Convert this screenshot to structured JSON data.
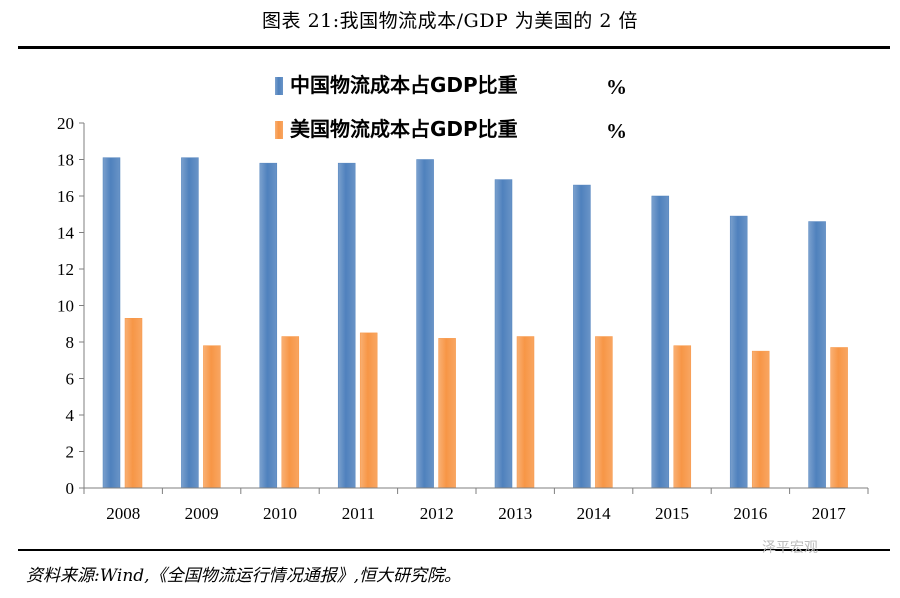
{
  "figure": {
    "title": "图表 21:我国物流成本/GDP 为美国的 2 倍",
    "source": "资料来源:Wind,《全国物流运行情况通报》,恒大研究院。",
    "watermark": "泽平宏观"
  },
  "chart_data": {
    "type": "bar",
    "categories": [
      "2008",
      "2009",
      "2010",
      "2011",
      "2012",
      "2013",
      "2014",
      "2015",
      "2016",
      "2017"
    ],
    "series": [
      {
        "name": "中国物流成本占GDP比重",
        "unit": "%",
        "color": "#4f81bd",
        "values": [
          18.1,
          18.1,
          17.8,
          17.8,
          18.0,
          16.9,
          16.6,
          16.0,
          14.9,
          14.6
        ]
      },
      {
        "name": "美国物流成本占GDP比重",
        "unit": "%",
        "color": "#f79646",
        "values": [
          9.3,
          7.8,
          8.3,
          8.5,
          8.2,
          8.3,
          8.3,
          7.8,
          7.5,
          7.7
        ]
      }
    ],
    "ylim": [
      0,
      20
    ],
    "yticks": [
      0,
      2,
      4,
      6,
      8,
      10,
      12,
      14,
      16,
      18,
      20
    ],
    "grid": false,
    "legend_position": "top-center",
    "xlabel": "",
    "ylabel": ""
  }
}
